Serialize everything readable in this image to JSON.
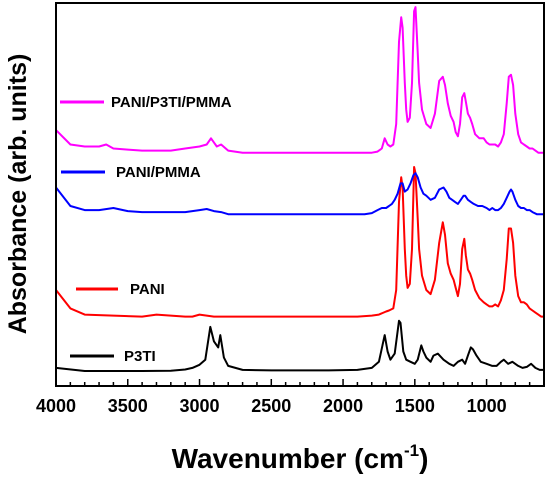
{
  "chart_data": {
    "type": "line",
    "xlabel": "Wavenumber (cm",
    "xlabel_sup": "-1",
    "xlabel_end": ")",
    "ylabel": "Absorbance (arb. units)",
    "xlim": [
      4000,
      600
    ],
    "x_reversed": true,
    "y_ticks_shown": false,
    "grid": false,
    "x_ticks": [
      "4000",
      "3500",
      "3000",
      "2500",
      "2000",
      "1500",
      "1000"
    ],
    "legend_placement": "inline-left",
    "series": [
      {
        "name": "P3TI",
        "color": "#000000",
        "offset": 0,
        "x": [
          4000,
          3800,
          3600,
          3400,
          3200,
          3100,
          3050,
          3000,
          2960,
          2925,
          2900,
          2870,
          2855,
          2830,
          2800,
          2700,
          2500,
          2300,
          2100,
          1900,
          1800,
          1750,
          1710,
          1690,
          1670,
          1640,
          1610,
          1600,
          1580,
          1560,
          1530,
          1500,
          1480,
          1455,
          1440,
          1420,
          1390,
          1370,
          1340,
          1300,
          1260,
          1230,
          1200,
          1170,
          1150,
          1130,
          1110,
          1095,
          1070,
          1040,
          1000,
          960,
          930,
          900,
          880,
          850,
          820,
          780,
          750,
          720,
          690,
          660,
          630,
          600
        ],
        "y": [
          0.2,
          0.05,
          0.05,
          0.05,
          0.06,
          0.12,
          0.2,
          0.35,
          0.6,
          2.2,
          1.5,
          1.2,
          1.8,
          0.7,
          0.3,
          0.1,
          0.08,
          0.08,
          0.08,
          0.1,
          0.2,
          0.5,
          1.8,
          1.0,
          0.6,
          0.9,
          2.5,
          2.4,
          1.0,
          0.6,
          0.5,
          0.4,
          0.6,
          1.3,
          1.0,
          0.7,
          0.5,
          0.8,
          0.9,
          0.6,
          0.4,
          0.3,
          0.5,
          0.6,
          0.4,
          0.8,
          1.2,
          1.1,
          0.8,
          0.5,
          0.4,
          0.3,
          0.3,
          0.5,
          0.6,
          0.4,
          0.5,
          0.3,
          0.2,
          0.25,
          0.4,
          0.2,
          0.1,
          0.1
        ]
      },
      {
        "name": "PANI",
        "color": "#ff0000",
        "offset": 2.5,
        "x": [
          4000,
          3900,
          3800,
          3600,
          3400,
          3300,
          3200,
          3100,
          3050,
          3000,
          2900,
          2700,
          2500,
          2300,
          2100,
          1900,
          1800,
          1750,
          1700,
          1680,
          1650,
          1630,
          1610,
          1595,
          1585,
          1570,
          1560,
          1550,
          1535,
          1520,
          1505,
          1495,
          1480,
          1470,
          1450,
          1420,
          1390,
          1360,
          1330,
          1305,
          1290,
          1270,
          1250,
          1230,
          1215,
          1200,
          1185,
          1170,
          1155,
          1145,
          1130,
          1115,
          1100,
          1080,
          1050,
          1020,
          1000,
          980,
          960,
          940,
          920,
          900,
          880,
          860,
          845,
          830,
          815,
          800,
          780,
          760,
          740,
          720,
          700,
          680,
          660,
          640,
          620,
          600
        ],
        "y": [
          1.5,
          0.6,
          0.3,
          0.25,
          0.2,
          0.3,
          0.25,
          0.2,
          0.2,
          0.3,
          0.2,
          0.2,
          0.2,
          0.2,
          0.2,
          0.2,
          0.25,
          0.3,
          0.45,
          0.5,
          0.6,
          1.5,
          5.8,
          7.0,
          6.5,
          3.5,
          2.2,
          1.6,
          1.8,
          3.5,
          7.5,
          7.2,
          5.0,
          3.5,
          2.2,
          1.5,
          1.3,
          2.0,
          3.8,
          4.8,
          4.2,
          2.8,
          2.3,
          2.0,
          1.6,
          1.2,
          1.8,
          3.5,
          4.0,
          3.2,
          2.5,
          2.3,
          2.0,
          1.5,
          1.1,
          0.9,
          0.8,
          0.7,
          0.7,
          0.8,
          0.7,
          1.0,
          1.5,
          3.0,
          4.5,
          4.5,
          3.8,
          2.2,
          1.2,
          0.9,
          0.9,
          0.8,
          0.6,
          0.5,
          0.4,
          0.3,
          0.2,
          0.2
        ]
      },
      {
        "name": "PANI/PMMA",
        "color": "#0000ff",
        "offset": 7.6,
        "x": [
          4000,
          3900,
          3800,
          3700,
          3600,
          3500,
          3400,
          3300,
          3200,
          3100,
          3000,
          2950,
          2900,
          2850,
          2800,
          2700,
          2500,
          2300,
          2100,
          1900,
          1850,
          1800,
          1760,
          1730,
          1700,
          1680,
          1660,
          1640,
          1620,
          1600,
          1585,
          1570,
          1550,
          1530,
          1510,
          1495,
          1480,
          1460,
          1440,
          1420,
          1390,
          1360,
          1330,
          1300,
          1280,
          1260,
          1240,
          1220,
          1200,
          1180,
          1160,
          1150,
          1130,
          1110,
          1090,
          1060,
          1030,
          1000,
          980,
          960,
          940,
          920,
          900,
          880,
          860,
          840,
          830,
          820,
          800,
          780,
          760,
          740,
          720,
          700,
          680,
          650,
          620,
          600
        ],
        "y": [
          1.4,
          0.5,
          0.3,
          0.3,
          0.4,
          0.25,
          0.2,
          0.2,
          0.2,
          0.2,
          0.3,
          0.35,
          0.25,
          0.2,
          0.1,
          0.1,
          0.1,
          0.1,
          0.1,
          0.1,
          0.1,
          0.15,
          0.3,
          0.4,
          0.4,
          0.5,
          0.6,
          0.8,
          1.1,
          1.6,
          1.6,
          1.2,
          1.3,
          1.6,
          2.0,
          2.1,
          1.9,
          1.4,
          1.1,
          1.0,
          0.8,
          0.9,
          1.3,
          1.4,
          1.2,
          0.9,
          0.8,
          0.7,
          0.6,
          0.8,
          1.0,
          1.0,
          0.8,
          0.7,
          0.6,
          0.5,
          0.5,
          0.4,
          0.3,
          0.4,
          0.3,
          0.3,
          0.4,
          0.6,
          0.9,
          1.2,
          1.3,
          1.2,
          0.8,
          0.5,
          0.4,
          0.4,
          0.3,
          0.3,
          0.2,
          0.1,
          0.1,
          0.1
        ]
      },
      {
        "name": "PANI/P3TI/PMMA",
        "color": "#ff00ff",
        "offset": 10.6,
        "x": [
          4000,
          3900,
          3800,
          3700,
          3650,
          3600,
          3500,
          3400,
          3300,
          3200,
          3100,
          3000,
          2950,
          2920,
          2900,
          2880,
          2850,
          2800,
          2700,
          2500,
          2300,
          2100,
          1900,
          1850,
          1800,
          1760,
          1730,
          1710,
          1690,
          1670,
          1650,
          1630,
          1610,
          1595,
          1585,
          1570,
          1560,
          1550,
          1535,
          1520,
          1505,
          1495,
          1480,
          1470,
          1450,
          1420,
          1390,
          1360,
          1330,
          1305,
          1290,
          1270,
          1250,
          1230,
          1215,
          1200,
          1185,
          1170,
          1155,
          1145,
          1130,
          1115,
          1100,
          1080,
          1050,
          1020,
          1000,
          980,
          960,
          940,
          920,
          900,
          880,
          860,
          845,
          830,
          815,
          800,
          780,
          760,
          740,
          720,
          700,
          680,
          660,
          640,
          620,
          600
        ],
        "y": [
          1.2,
          0.5,
          0.4,
          0.4,
          0.5,
          0.3,
          0.25,
          0.2,
          0.2,
          0.2,
          0.3,
          0.4,
          0.5,
          0.8,
          0.6,
          0.4,
          0.5,
          0.2,
          0.1,
          0.1,
          0.1,
          0.1,
          0.1,
          0.1,
          0.1,
          0.15,
          0.3,
          0.8,
          0.5,
          0.4,
          0.5,
          1.5,
          5.5,
          6.7,
          6.2,
          3.5,
          2.2,
          1.6,
          1.8,
          3.5,
          7.0,
          7.2,
          5.0,
          3.5,
          2.2,
          1.5,
          1.3,
          2.0,
          3.6,
          3.8,
          3.4,
          2.5,
          1.9,
          1.6,
          1.1,
          0.9,
          1.5,
          2.8,
          3.0,
          2.6,
          2.0,
          1.8,
          1.5,
          1.0,
          0.8,
          0.8,
          0.6,
          0.5,
          0.5,
          0.5,
          0.4,
          0.6,
          1.0,
          2.5,
          3.8,
          3.9,
          3.4,
          2.0,
          1.0,
          0.6,
          0.5,
          0.4,
          0.3,
          0.3,
          0.2,
          0.1,
          0.1,
          0.1
        ]
      }
    ]
  }
}
